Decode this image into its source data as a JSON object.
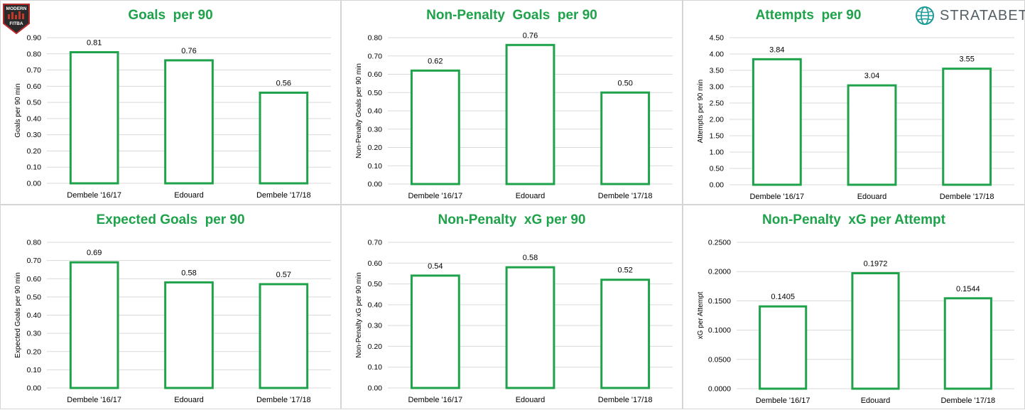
{
  "branding": {
    "left_logo_lines": [
      "MODERN",
      "FITBA"
    ],
    "right_logo_text": "STRATABET",
    "right_logo_icon": "globe-icon"
  },
  "colors": {
    "title": "#1ea24a",
    "bar_stroke": "#1ea24a",
    "bar_fill": "#ffffff",
    "grid": "#d9d9d9",
    "text": "#000000"
  },
  "chart_data": [
    {
      "type": "bar",
      "title": "Goals  per 90",
      "ylabel": "Goals per 90 min",
      "categories": [
        "Dembele '16/17",
        "Edouard",
        "Dembele '17/18"
      ],
      "values": [
        0.81,
        0.76,
        0.56
      ],
      "value_labels": [
        "0.81",
        "0.76",
        "0.56"
      ],
      "ylim": [
        0,
        0.9
      ],
      "yticks": [
        "0.00",
        "0.10",
        "0.20",
        "0.30",
        "0.40",
        "0.50",
        "0.60",
        "0.70",
        "0.80",
        "0.90"
      ],
      "grid": true
    },
    {
      "type": "bar",
      "title": "Non-Penalty  Goals  per 90",
      "ylabel": "Non-Penalty Goals per 90 min",
      "categories": [
        "Dembele '16/17",
        "Edouard",
        "Dembele '17/18"
      ],
      "values": [
        0.62,
        0.76,
        0.5
      ],
      "value_labels": [
        "0.62",
        "0.76",
        "0.50"
      ],
      "ylim": [
        0,
        0.8
      ],
      "yticks": [
        "0.00",
        "0.10",
        "0.20",
        "0.30",
        "0.40",
        "0.50",
        "0.60",
        "0.70",
        "0.80"
      ],
      "grid": true
    },
    {
      "type": "bar",
      "title": "Attempts  per 90",
      "ylabel": "Attempts per 90 min",
      "categories": [
        "Dembele '16/17",
        "Edouard",
        "Dembele '17/18"
      ],
      "values": [
        3.84,
        3.04,
        3.55
      ],
      "value_labels": [
        "3.84",
        "3.04",
        "3.55"
      ],
      "ylim": [
        0,
        4.5
      ],
      "yticks": [
        "0.00",
        "0.50",
        "1.00",
        "1.50",
        "2.00",
        "2.50",
        "3.00",
        "3.50",
        "4.00",
        "4.50"
      ],
      "grid": true
    },
    {
      "type": "bar",
      "title": "Expected Goals  per 90",
      "ylabel": "Expected Goals per 90 min",
      "categories": [
        "Dembele '16/17",
        "Edouard",
        "Dembele '17/18"
      ],
      "values": [
        0.69,
        0.58,
        0.57
      ],
      "value_labels": [
        "0.69",
        "0.58",
        "0.57"
      ],
      "ylim": [
        0,
        0.8
      ],
      "yticks": [
        "0.00",
        "0.10",
        "0.20",
        "0.30",
        "0.40",
        "0.50",
        "0.60",
        "0.70",
        "0.80"
      ],
      "grid": true
    },
    {
      "type": "bar",
      "title": "Non-Penalty  xG per 90",
      "ylabel": "Non-Penalty xG per 90 min",
      "categories": [
        "Dembele '16/17",
        "Edouard",
        "Dembele '17/18"
      ],
      "values": [
        0.54,
        0.58,
        0.52
      ],
      "value_labels": [
        "0.54",
        "0.58",
        "0.52"
      ],
      "ylim": [
        0,
        0.7
      ],
      "yticks": [
        "0.00",
        "0.10",
        "0.20",
        "0.30",
        "0.40",
        "0.50",
        "0.60",
        "0.70"
      ],
      "grid": true
    },
    {
      "type": "bar",
      "title": "Non-Penalty  xG per Attempt",
      "ylabel": "xG per Attempt",
      "categories": [
        "Dembele '16/17",
        "Edouard",
        "Dembele '17/18"
      ],
      "values": [
        0.1405,
        0.1972,
        0.1544
      ],
      "value_labels": [
        "0.1405",
        "0.1972",
        "0.1544"
      ],
      "ylim": [
        0,
        0.25
      ],
      "yticks": [
        "0.0000",
        "0.0500",
        "0.1000",
        "0.1500",
        "0.2000",
        "0.2500"
      ],
      "grid": true
    }
  ]
}
